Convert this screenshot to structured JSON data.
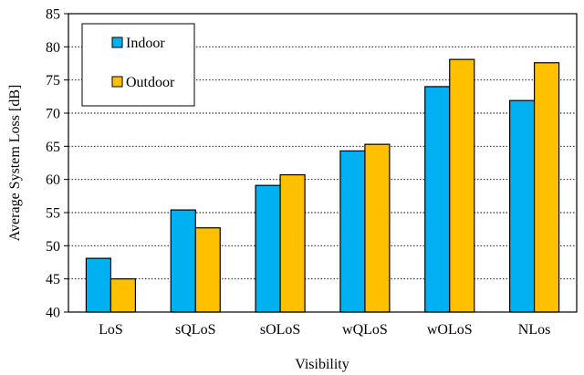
{
  "chart_data": {
    "type": "bar",
    "categories": [
      "LoS",
      "sQLoS",
      "sOLoS",
      "wQLoS",
      "wOLoS",
      "NLos"
    ],
    "series": [
      {
        "name": "Indoor",
        "values": [
          48.1,
          55.4,
          59.1,
          64.3,
          74.0,
          71.9
        ],
        "color": "#00B0F0"
      },
      {
        "name": "Outdoor",
        "values": [
          45.0,
          52.7,
          60.7,
          65.3,
          78.1,
          77.6
        ],
        "color": "#FFC000"
      }
    ],
    "xlabel": "Visibility",
    "ylabel": "Average System Loss [dB]",
    "ylim": [
      40,
      85
    ],
    "yticks": [
      40,
      45,
      50,
      55,
      60,
      65,
      70,
      75,
      80,
      85
    ],
    "grid": true,
    "legend_position": "top-left"
  }
}
